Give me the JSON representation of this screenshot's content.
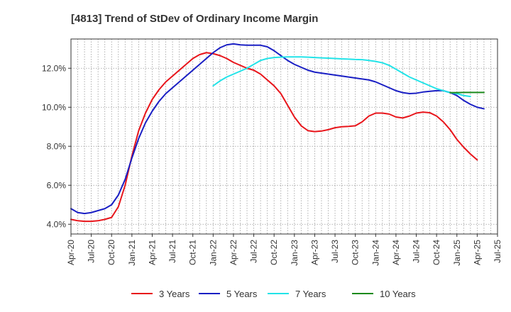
{
  "chart_data": {
    "type": "line",
    "title": "[4813]  Trend of StDev of Ordinary Income Margin",
    "xlabel": "",
    "ylabel": "",
    "x_tick_labels": [
      "Apr-20",
      "Jul-20",
      "Oct-20",
      "Jan-21",
      "Apr-21",
      "Jul-21",
      "Oct-21",
      "Jan-22",
      "Apr-22",
      "Jul-22",
      "Oct-22",
      "Jan-23",
      "Apr-23",
      "Jul-23",
      "Oct-23",
      "Jan-24",
      "Apr-24",
      "Jul-24",
      "Oct-24",
      "Jan-25",
      "Apr-25",
      "Jul-25"
    ],
    "y_ticks": [
      4.0,
      6.0,
      8.0,
      10.0,
      12.0
    ],
    "y_tick_labels": [
      "4.0%",
      "6.0%",
      "8.0%",
      "10.0%",
      "12.0%"
    ],
    "ylim": [
      3.5,
      13.5
    ],
    "grid": "dotted",
    "legend_position": "bottom",
    "series": [
      {
        "name": "3 Years",
        "color": "#e8151b",
        "start_index": 0,
        "values": [
          4.25,
          4.18,
          4.15,
          4.15,
          4.18,
          4.25,
          4.35,
          4.9,
          6.0,
          7.5,
          8.8,
          9.7,
          10.4,
          10.9,
          11.3,
          11.6,
          11.9,
          12.2,
          12.5,
          12.7,
          12.8,
          12.75,
          12.65,
          12.5,
          12.3,
          12.15,
          12.0,
          11.9,
          11.7,
          11.4,
          11.1,
          10.7,
          10.1,
          9.5,
          9.05,
          8.8,
          8.75,
          8.78,
          8.85,
          8.95,
          9.0,
          9.02,
          9.05,
          9.25,
          9.55,
          9.7,
          9.7,
          9.65,
          9.5,
          9.45,
          9.55,
          9.7,
          9.75,
          9.72,
          9.55,
          9.25,
          8.85,
          8.35,
          7.95,
          7.6,
          7.3
        ]
      },
      {
        "name": "5 Years",
        "color": "#1a1fc4",
        "start_index": 0,
        "values": [
          4.8,
          4.6,
          4.55,
          4.6,
          4.7,
          4.8,
          5.0,
          5.5,
          6.3,
          7.4,
          8.4,
          9.2,
          9.8,
          10.3,
          10.7,
          11.0,
          11.3,
          11.6,
          11.9,
          12.2,
          12.5,
          12.8,
          13.05,
          13.2,
          13.25,
          13.2,
          13.18,
          13.18,
          13.18,
          13.1,
          12.9,
          12.65,
          12.4,
          12.2,
          12.05,
          11.9,
          11.8,
          11.75,
          11.7,
          11.65,
          11.6,
          11.55,
          11.5,
          11.45,
          11.4,
          11.3,
          11.15,
          11.0,
          10.85,
          10.75,
          10.7,
          10.72,
          10.78,
          10.82,
          10.85,
          10.85,
          10.75,
          10.6,
          10.35,
          10.15,
          10.0,
          9.92
        ]
      },
      {
        "name": "7 Years",
        "color": "#22e3e8",
        "start_index": 21,
        "values": [
          11.1,
          11.35,
          11.55,
          11.7,
          11.85,
          12.0,
          12.2,
          12.4,
          12.5,
          12.55,
          12.57,
          12.58,
          12.58,
          12.58,
          12.57,
          12.55,
          12.53,
          12.52,
          12.5,
          12.48,
          12.47,
          12.45,
          12.44,
          12.4,
          12.35,
          12.28,
          12.15,
          11.95,
          11.75,
          11.55,
          11.4,
          11.25,
          11.1,
          10.95,
          10.85,
          10.75,
          10.7,
          10.6,
          10.55
        ]
      },
      {
        "name": "10 Years",
        "color": "#1c8a1c",
        "start_index": 56,
        "values": [
          10.75,
          10.75,
          10.76,
          10.76,
          10.76,
          10.76
        ]
      }
    ]
  }
}
